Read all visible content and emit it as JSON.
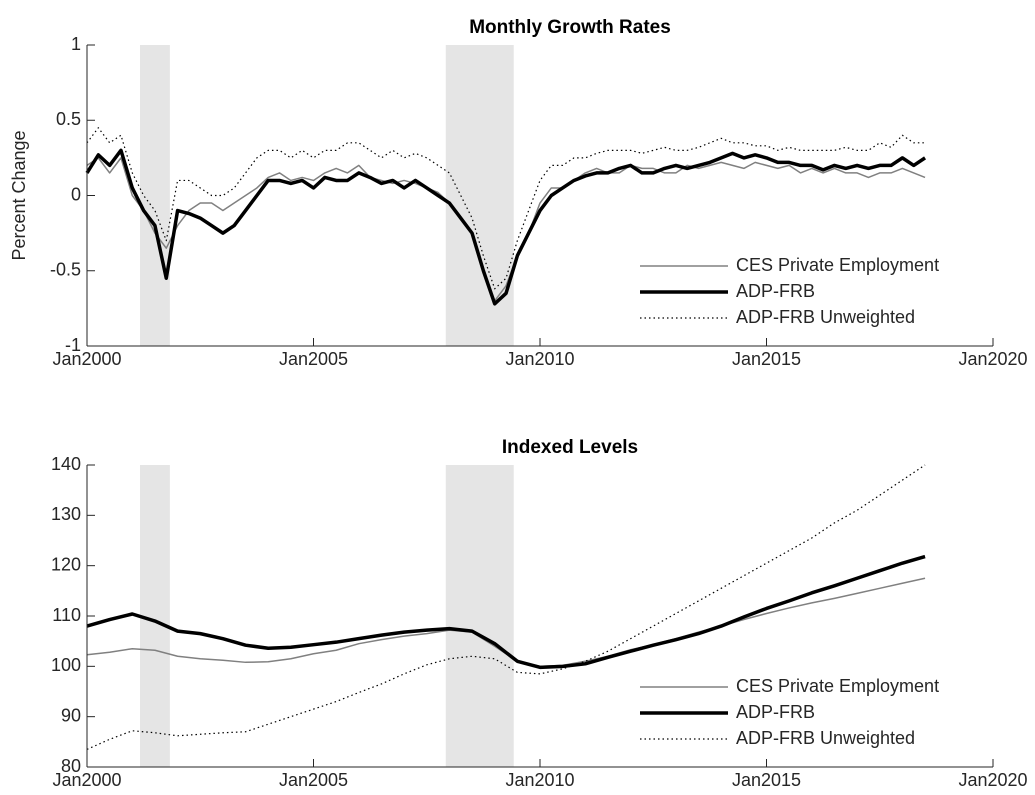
{
  "chart_data": [
    {
      "type": "line",
      "title": "Monthly Growth Rates",
      "y_label": "Percent Change",
      "xlim": [
        2000,
        2020
      ],
      "ylim": [
        -1,
        1
      ],
      "xticks": [
        {
          "value": 2000,
          "label": "Jan2000"
        },
        {
          "value": 2005,
          "label": "Jan2005"
        },
        {
          "value": 2010,
          "label": "Jan2010"
        },
        {
          "value": 2015,
          "label": "Jan2015"
        },
        {
          "value": 2020,
          "label": "Jan2020"
        }
      ],
      "yticks": [
        -1,
        -0.5,
        0,
        0.5,
        1
      ],
      "legend": "lower right",
      "shaded_regions": [
        [
          2001.17,
          2001.83
        ],
        [
          2007.92,
          2009.42
        ]
      ],
      "shade_color": "#e5e5e5",
      "x": [
        2000,
        2000.25,
        2000.5,
        2000.75,
        2001,
        2001.25,
        2001.5,
        2001.75,
        2002,
        2002.25,
        2002.5,
        2002.75,
        2003,
        2003.25,
        2003.5,
        2003.75,
        2004,
        2004.25,
        2004.5,
        2004.75,
        2005,
        2005.25,
        2005.5,
        2005.75,
        2006,
        2006.25,
        2006.5,
        2006.75,
        2007,
        2007.25,
        2007.5,
        2007.75,
        2008,
        2008.25,
        2008.5,
        2008.75,
        2009,
        2009.25,
        2009.5,
        2009.75,
        2010,
        2010.25,
        2010.5,
        2010.75,
        2011,
        2011.25,
        2011.5,
        2011.75,
        2012,
        2012.25,
        2012.5,
        2012.75,
        2013,
        2013.25,
        2013.5,
        2013.75,
        2014,
        2014.25,
        2014.5,
        2014.75,
        2015,
        2015.25,
        2015.5,
        2015.75,
        2016,
        2016.25,
        2016.5,
        2016.75,
        2017,
        2017.25,
        2017.5,
        2017.75,
        2018,
        2018.25,
        2018.5
      ],
      "series": [
        {
          "name": "CES Private Employment",
          "color": "#808080",
          "line_width": 1.5,
          "line_style": "solid",
          "values": [
            0.2,
            0.25,
            0.15,
            0.25,
            0.0,
            -0.1,
            -0.25,
            -0.35,
            -0.2,
            -0.1,
            -0.05,
            -0.05,
            -0.1,
            -0.05,
            0.0,
            0.05,
            0.12,
            0.15,
            0.1,
            0.12,
            0.1,
            0.15,
            0.18,
            0.15,
            0.2,
            0.12,
            0.1,
            0.08,
            0.1,
            0.08,
            0.05,
            0.02,
            -0.05,
            -0.15,
            -0.25,
            -0.5,
            -0.7,
            -0.6,
            -0.4,
            -0.25,
            -0.05,
            0.05,
            0.05,
            0.1,
            0.15,
            0.18,
            0.15,
            0.15,
            0.2,
            0.18,
            0.18,
            0.15,
            0.15,
            0.2,
            0.18,
            0.2,
            0.22,
            0.2,
            0.18,
            0.22,
            0.2,
            0.18,
            0.2,
            0.15,
            0.18,
            0.15,
            0.18,
            0.15,
            0.15,
            0.12,
            0.15,
            0.15,
            0.18,
            0.15,
            0.12
          ]
        },
        {
          "name": "ADP-FRB",
          "color": "#000000",
          "line_width": 3.5,
          "line_style": "solid",
          "values": [
            0.15,
            0.27,
            0.2,
            0.3,
            0.05,
            -0.1,
            -0.2,
            -0.55,
            -0.1,
            -0.12,
            -0.15,
            -0.2,
            -0.25,
            -0.2,
            -0.1,
            0.0,
            0.1,
            0.1,
            0.08,
            0.1,
            0.05,
            0.12,
            0.1,
            0.1,
            0.15,
            0.12,
            0.08,
            0.1,
            0.05,
            0.1,
            0.05,
            0.0,
            -0.05,
            -0.15,
            -0.25,
            -0.5,
            -0.72,
            -0.65,
            -0.4,
            -0.25,
            -0.1,
            0.0,
            0.05,
            0.1,
            0.13,
            0.15,
            0.15,
            0.18,
            0.2,
            0.15,
            0.15,
            0.18,
            0.2,
            0.18,
            0.2,
            0.22,
            0.25,
            0.28,
            0.25,
            0.27,
            0.25,
            0.22,
            0.22,
            0.2,
            0.2,
            0.17,
            0.2,
            0.18,
            0.2,
            0.18,
            0.2,
            0.2,
            0.25,
            0.2,
            0.25
          ]
        },
        {
          "name": "ADP-FRB Unweighted",
          "color": "#000000",
          "line_width": 1.2,
          "line_style": "dotted",
          "values": [
            0.35,
            0.45,
            0.35,
            0.4,
            0.15,
            0.0,
            -0.1,
            -0.3,
            0.1,
            0.1,
            0.05,
            0.0,
            0.0,
            0.05,
            0.15,
            0.25,
            0.3,
            0.3,
            0.25,
            0.3,
            0.25,
            0.3,
            0.3,
            0.35,
            0.35,
            0.3,
            0.25,
            0.3,
            0.25,
            0.28,
            0.25,
            0.2,
            0.15,
            0.0,
            -0.15,
            -0.4,
            -0.62,
            -0.55,
            -0.3,
            -0.1,
            0.1,
            0.2,
            0.2,
            0.25,
            0.25,
            0.28,
            0.3,
            0.3,
            0.3,
            0.28,
            0.3,
            0.32,
            0.3,
            0.3,
            0.32,
            0.35,
            0.38,
            0.35,
            0.35,
            0.33,
            0.33,
            0.3,
            0.32,
            0.3,
            0.3,
            0.3,
            0.3,
            0.32,
            0.3,
            0.3,
            0.35,
            0.32,
            0.4,
            0.35,
            0.35
          ]
        }
      ]
    },
    {
      "type": "line",
      "title": "Indexed Levels",
      "xlim": [
        2000,
        2020
      ],
      "ylim": [
        80,
        140
      ],
      "xticks": [
        {
          "value": 2000,
          "label": "Jan2000"
        },
        {
          "value": 2005,
          "label": "Jan2005"
        },
        {
          "value": 2010,
          "label": "Jan2010"
        },
        {
          "value": 2015,
          "label": "Jan2015"
        },
        {
          "value": 2020,
          "label": "Jan2020"
        }
      ],
      "yticks": [
        80,
        90,
        100,
        110,
        120,
        130,
        140
      ],
      "legend": "lower right",
      "shaded_regions": [
        [
          2001.17,
          2001.83
        ],
        [
          2007.92,
          2009.42
        ]
      ],
      "shade_color": "#e5e5e5",
      "x": [
        2000,
        2000.5,
        2001,
        2001.5,
        2002,
        2002.5,
        2003,
        2003.5,
        2004,
        2004.5,
        2005,
        2005.5,
        2006,
        2006.5,
        2007,
        2007.5,
        2008,
        2008.5,
        2009,
        2009.5,
        2010,
        2010.5,
        2011,
        2011.5,
        2012,
        2012.5,
        2013,
        2013.5,
        2014,
        2014.5,
        2015,
        2015.5,
        2016,
        2016.5,
        2017,
        2017.5,
        2018,
        2018.5
      ],
      "series": [
        {
          "name": "CES Private Employment",
          "color": "#808080",
          "line_width": 1.5,
          "line_style": "solid",
          "values": [
            102.3,
            102.8,
            103.5,
            103.2,
            102,
            101.5,
            101.2,
            100.8,
            100.9,
            101.5,
            102.5,
            103.2,
            104.5,
            105.3,
            106,
            106.5,
            107.2,
            106.8,
            104,
            101,
            100,
            100.2,
            101,
            102,
            103.3,
            104.3,
            105.5,
            106.8,
            108,
            109.3,
            110.5,
            111.6,
            112.6,
            113.5,
            114.5,
            115.5,
            116.5,
            117.5
          ]
        },
        {
          "name": "ADP-FRB",
          "color": "#000000",
          "line_width": 3.5,
          "line_style": "solid",
          "values": [
            108,
            109.3,
            110.4,
            109,
            107,
            106.5,
            105.5,
            104.2,
            103.6,
            103.8,
            104.3,
            104.8,
            105.5,
            106.2,
            106.8,
            107.2,
            107.5,
            107,
            104.5,
            101,
            99.8,
            100,
            100.5,
            101.8,
            103,
            104.2,
            105.3,
            106.5,
            108,
            109.8,
            111.5,
            113,
            114.6,
            116,
            117.5,
            119,
            120.5,
            121.8
          ]
        },
        {
          "name": "ADP-FRB Unweighted",
          "color": "#000000",
          "line_width": 1.2,
          "line_style": "dotted",
          "values": [
            83.5,
            85.5,
            87.2,
            86.8,
            86.2,
            86.5,
            86.8,
            87,
            88.5,
            90,
            91.5,
            93,
            94.8,
            96.5,
            98.5,
            100.3,
            101.5,
            102,
            101.5,
            98.8,
            98.5,
            99.5,
            101,
            103,
            105.5,
            108,
            110.5,
            113,
            115.5,
            118,
            120.5,
            123,
            125.5,
            128.5,
            131,
            134,
            137,
            140
          ]
        }
      ]
    }
  ]
}
